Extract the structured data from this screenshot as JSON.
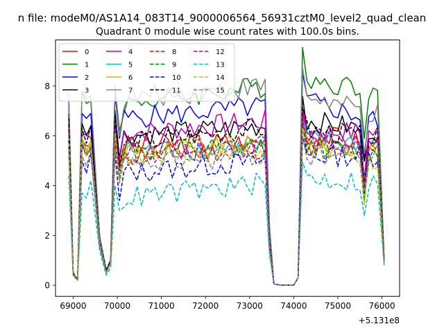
{
  "suptitle": "n file: modeM0/AS1A14_083T14_9000006564_56931cztM0_level2_quad_clean",
  "chart_data": {
    "type": "line",
    "title": "Quadrant 0 module wise count rates with 100.0s bins.",
    "xlabel": "",
    "ylabel": "",
    "x_offset_label": "+5.131e8",
    "xlim": [
      68600,
      76400
    ],
    "ylim": [
      -0.45,
      9.85
    ],
    "xticks": [
      69000,
      70000,
      71000,
      72000,
      73000,
      74000,
      75000,
      76000
    ],
    "xtick_labels": [
      "69000",
      "70000",
      "71000",
      "72000",
      "73000",
      "74000",
      "75000",
      "76000"
    ],
    "yticks": [
      0,
      2,
      4,
      6,
      8
    ],
    "ytick_labels": [
      "0",
      "2",
      "4",
      "6",
      "8"
    ],
    "grid": false,
    "legend_placement": "top-left",
    "legend_columns": 4,
    "series": [
      {
        "name": "0",
        "color": "#ff0000",
        "dash": "solid",
        "pattern": [
          6.5,
          0.5,
          0.2,
          5.8,
          5.6,
          1.8,
          0.6,
          1.0,
          6.0,
          4.9
        ],
        "start": 5.6,
        "mid": 5.8,
        "post": 6.1,
        "tail": 5.7,
        "end": 1.0
      },
      {
        "name": "1",
        "color": "#008000",
        "dash": "solid",
        "pattern": [
          7.4,
          0.5,
          0.2,
          7.8,
          7.4,
          2.0,
          0.6,
          1.0,
          8.0,
          6.2
        ],
        "start": 7.3,
        "mid": 8.0,
        "post": 8.3,
        "tail": 7.8,
        "end": 1.1
      },
      {
        "name": "2",
        "color": "#0000ff",
        "dash": "solid",
        "pattern": [
          7.5,
          0.5,
          0.2,
          6.9,
          6.9,
          1.9,
          0.6,
          1.0,
          7.7,
          5.9
        ],
        "start": 6.7,
        "mid": 7.2,
        "post": 7.4,
        "tail": 6.6,
        "end": 1.0
      },
      {
        "name": "3",
        "color": "#000000",
        "dash": "solid",
        "pattern": [
          6.9,
          0.5,
          0.2,
          6.5,
          6.4,
          1.9,
          0.6,
          1.0,
          7.0,
          5.1
        ],
        "start": 6.0,
        "mid": 6.4,
        "post": 6.6,
        "tail": 6.2,
        "end": 1.0
      },
      {
        "name": "4",
        "color": "#bf00bf",
        "dash": "solid",
        "pattern": [
          6.3,
          0.5,
          0.2,
          6.0,
          5.9,
          1.8,
          0.6,
          1.0,
          6.4,
          5.0
        ],
        "start": 6.1,
        "mid": 6.6,
        "post": 6.2,
        "tail": 6.1,
        "end": 1.0
      },
      {
        "name": "5",
        "color": "#00bfbf",
        "dash": "solid",
        "pattern": [
          5.9,
          0.4,
          0.2,
          5.9,
          5.8,
          1.7,
          0.5,
          0.9,
          6.1,
          4.3
        ],
        "start": 5.4,
        "mid": 5.5,
        "post": 5.8,
        "tail": 5.7,
        "end": 0.9
      },
      {
        "name": "6",
        "color": "#bfbf00",
        "dash": "solid",
        "pattern": [
          5.9,
          0.4,
          0.2,
          5.7,
          5.8,
          1.7,
          0.5,
          0.9,
          5.9,
          4.6
        ],
        "start": 5.4,
        "mid": 5.6,
        "post": 5.6,
        "tail": 5.3,
        "end": 1.0
      },
      {
        "name": "7",
        "color": "#808080",
        "dash": "solid",
        "pattern": [
          7.7,
          0.5,
          0.2,
          7.8,
          7.6,
          2.0,
          0.6,
          1.0,
          8.0,
          6.0
        ],
        "start": 7.5,
        "mid": 8.0,
        "post": 7.6,
        "tail": 6.8,
        "end": 1.0
      },
      {
        "name": "8",
        "color": "#ff0000",
        "dash": "dashed",
        "pattern": [
          5.5,
          0.4,
          0.2,
          5.6,
          5.5,
          1.6,
          0.5,
          0.9,
          5.6,
          4.6
        ],
        "start": 5.2,
        "mid": 5.5,
        "post": 5.6,
        "tail": 5.4,
        "end": 1.0
      },
      {
        "name": "9",
        "color": "#008000",
        "dash": "dashed",
        "pattern": [
          5.6,
          0.4,
          0.2,
          5.7,
          5.5,
          1.6,
          0.5,
          0.9,
          5.9,
          4.3
        ],
        "start": 5.2,
        "mid": 5.6,
        "post": 5.6,
        "tail": 5.2,
        "end": 0.9
      },
      {
        "name": "10",
        "color": "#0000ff",
        "dash": "dashed",
        "pattern": [
          5.8,
          0.4,
          0.2,
          5.0,
          5.3,
          1.6,
          0.5,
          0.9,
          5.3,
          3.4
        ],
        "start": 4.5,
        "mid": 5.0,
        "post": 5.2,
        "tail": 5.2,
        "end": 0.9
      },
      {
        "name": "11",
        "color": "#000000",
        "dash": "dashed",
        "pattern": [
          6.7,
          0.5,
          0.2,
          6.3,
          6.4,
          1.8,
          0.6,
          1.0,
          6.8,
          4.8
        ],
        "start": 5.7,
        "mid": 6.3,
        "post": 6.2,
        "tail": 5.9,
        "end": 1.0
      },
      {
        "name": "12",
        "color": "#bf00bf",
        "dash": "dashed",
        "pattern": [
          5.4,
          0.4,
          0.2,
          5.6,
          5.6,
          1.6,
          0.5,
          0.9,
          5.8,
          4.7
        ],
        "start": 5.3,
        "mid": 5.6,
        "post": 5.8,
        "tail": 5.6,
        "end": 1.0
      },
      {
        "name": "13",
        "color": "#00bfbf",
        "dash": "dashed",
        "pattern": [
          4.4,
          0.4,
          0.2,
          3.7,
          4.2,
          1.4,
          0.4,
          0.7,
          4.0,
          3.0
        ],
        "start": 3.5,
        "mid": 4.1,
        "post": 4.3,
        "tail": 4.1,
        "end": 0.8
      },
      {
        "name": "14",
        "color": "#bfbf00",
        "dash": "dashed",
        "pattern": [
          5.7,
          0.4,
          0.2,
          5.9,
          5.7,
          1.7,
          0.5,
          0.9,
          6.1,
          4.2
        ],
        "start": 5.2,
        "mid": 5.5,
        "post": 5.5,
        "tail": 5.0,
        "end": 0.9
      },
      {
        "name": "15",
        "color": "#808080",
        "dash": "dashed",
        "pattern": [
          5.4,
          0.4,
          0.2,
          5.2,
          5.4,
          1.6,
          0.5,
          0.9,
          5.5,
          4.1
        ],
        "start": 4.8,
        "mid": 5.2,
        "post": 5.2,
        "tail": 5.3,
        "end": 0.9
      }
    ]
  }
}
